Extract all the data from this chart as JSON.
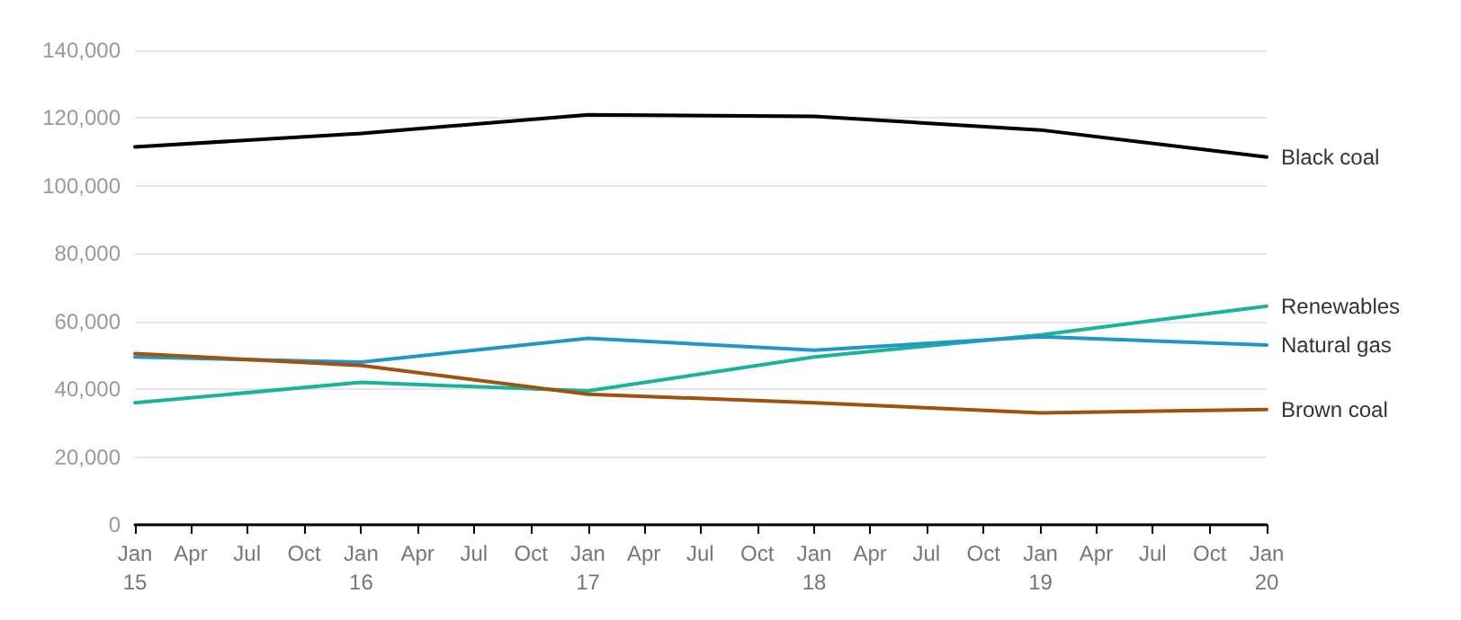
{
  "chart_data": {
    "type": "line",
    "x": [
      "2015-01",
      "2016-01",
      "2017-01",
      "2018-01",
      "2019-01",
      "2020-01"
    ],
    "series": [
      {
        "name": "Black coal",
        "color": "#000000",
        "values": [
          111500,
          115500,
          121000,
          120500,
          116500,
          108500
        ]
      },
      {
        "name": "Renewables",
        "color": "#1ab39b",
        "values": [
          36000,
          42000,
          39500,
          49500,
          56000,
          64500
        ]
      },
      {
        "name": "Natural gas",
        "color": "#2196c8",
        "values": [
          49500,
          48000,
          55000,
          51500,
          55500,
          53000
        ]
      },
      {
        "name": "Brown coal",
        "color": "#a0520f",
        "values": [
          50500,
          47000,
          38500,
          36000,
          33000,
          34000
        ]
      }
    ],
    "xlim": [
      "2015-01",
      "2020-01"
    ],
    "xticks": [
      {
        "value": "2015-01",
        "label": "Jan\n15"
      },
      {
        "value": "2015-04",
        "label": "Apr"
      },
      {
        "value": "2015-07",
        "label": "Jul"
      },
      {
        "value": "2015-10",
        "label": "Oct"
      },
      {
        "value": "2016-01",
        "label": "Jan\n16"
      },
      {
        "value": "2016-04",
        "label": "Apr"
      },
      {
        "value": "2016-07",
        "label": "Jul"
      },
      {
        "value": "2016-10",
        "label": "Oct"
      },
      {
        "value": "2017-01",
        "label": "Jan\n17"
      },
      {
        "value": "2017-04",
        "label": "Apr"
      },
      {
        "value": "2017-07",
        "label": "Jul"
      },
      {
        "value": "2017-10",
        "label": "Oct"
      },
      {
        "value": "2018-01",
        "label": "Jan\n18"
      },
      {
        "value": "2018-04",
        "label": "Apr"
      },
      {
        "value": "2018-07",
        "label": "Jul"
      },
      {
        "value": "2018-10",
        "label": "Oct"
      },
      {
        "value": "2019-01",
        "label": "Jan\n19"
      },
      {
        "value": "2019-04",
        "label": "Apr"
      },
      {
        "value": "2019-07",
        "label": "Jul"
      },
      {
        "value": "2019-10",
        "label": "Oct"
      },
      {
        "value": "2020-01",
        "label": "Jan\n20"
      }
    ],
    "ylim": [
      0,
      140000
    ],
    "yticks": [
      {
        "value": 0,
        "label": "0"
      },
      {
        "value": 20000,
        "label": "20,000"
      },
      {
        "value": 40000,
        "label": "40,000"
      },
      {
        "value": 60000,
        "label": "60,000"
      },
      {
        "value": 80000,
        "label": "80,000"
      },
      {
        "value": 100000,
        "label": "100,000"
      },
      {
        "value": 120000,
        "label": "120,000"
      },
      {
        "value": 140000,
        "label": "140,000"
      }
    ],
    "grid": "y",
    "legend": false,
    "marker": "none",
    "line_style": "solid"
  }
}
